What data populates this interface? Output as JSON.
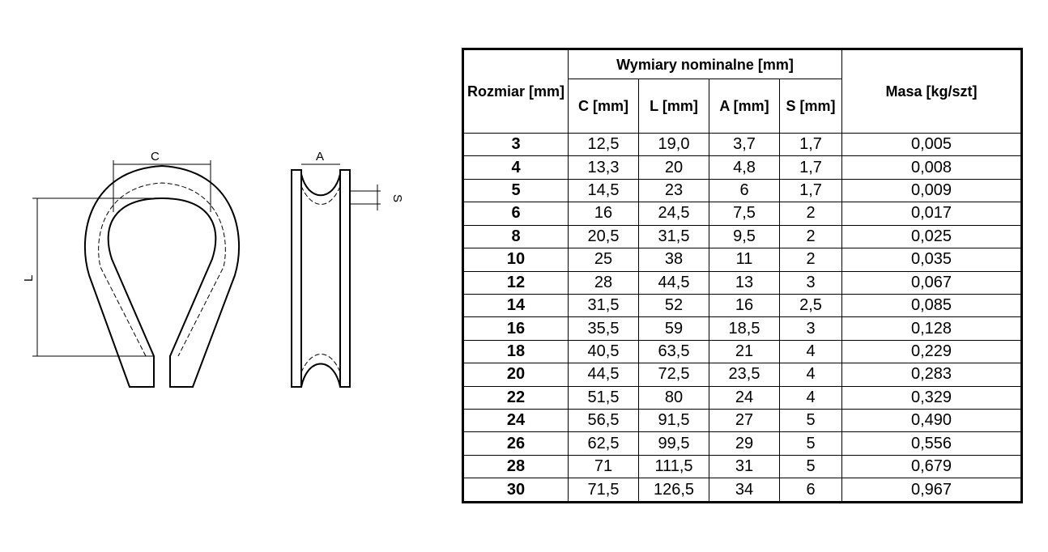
{
  "drawing": {
    "label_c": "C",
    "label_l": "L",
    "label_a": "A",
    "label_s": "S"
  },
  "table": {
    "header_size": "Rozmiar [mm]",
    "header_group": "Wymiary nominalne [mm]",
    "header_c": "C [mm]",
    "header_l": "L [mm]",
    "header_a": "A [mm]",
    "header_s": "S [mm]",
    "header_mass": "Masa [kg/szt]",
    "rows": [
      [
        "3",
        "12,5",
        "19,0",
        "3,7",
        "1,7",
        "0,005"
      ],
      [
        "4",
        "13,3",
        "20",
        "4,8",
        "1,7",
        "0,008"
      ],
      [
        "5",
        "14,5",
        "23",
        "6",
        "1,7",
        "0,009"
      ],
      [
        "6",
        "16",
        "24,5",
        "7,5",
        "2",
        "0,017"
      ],
      [
        "8",
        "20,5",
        "31,5",
        "9,5",
        "2",
        "0,025"
      ],
      [
        "10",
        "25",
        "38",
        "11",
        "2",
        "0,035"
      ],
      [
        "12",
        "28",
        "44,5",
        "13",
        "3",
        "0,067"
      ],
      [
        "14",
        "31,5",
        "52",
        "16",
        "2,5",
        "0,085"
      ],
      [
        "16",
        "35,5",
        "59",
        "18,5",
        "3",
        "0,128"
      ],
      [
        "18",
        "40,5",
        "63,5",
        "21",
        "4",
        "0,229"
      ],
      [
        "20",
        "44,5",
        "72,5",
        "23,5",
        "4",
        "0,283"
      ],
      [
        "22",
        "51,5",
        "80",
        "24",
        "4",
        "0,329"
      ],
      [
        "24",
        "56,5",
        "91,5",
        "27",
        "5",
        "0,490"
      ],
      [
        "26",
        "62,5",
        "99,5",
        "29",
        "5",
        "0,556"
      ],
      [
        "28",
        "71",
        "111,5",
        "31",
        "5",
        "0,679"
      ],
      [
        "30",
        "71,5",
        "126,5",
        "34",
        "6",
        "0,967"
      ]
    ]
  }
}
